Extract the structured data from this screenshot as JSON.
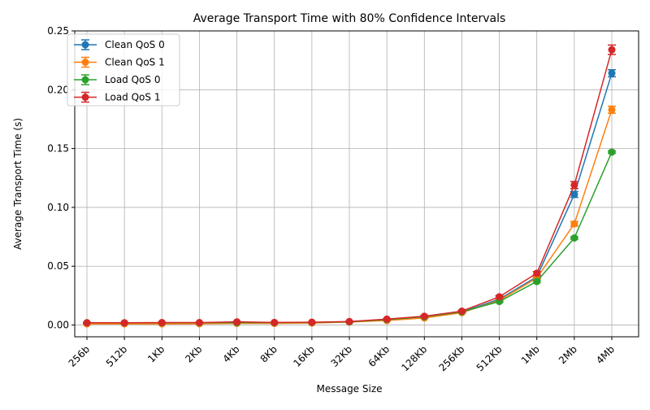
{
  "chart_data": {
    "type": "line",
    "title": "Average Transport Time with 80% Confidence Intervals",
    "xlabel": "Message Size",
    "ylabel": "Average Transport Time (s)",
    "categories": [
      "256b",
      "512b",
      "1Kb",
      "2Kb",
      "4Kb",
      "8Kb",
      "16Kb",
      "32Kb",
      "64Kb",
      "128Kb",
      "256Kb",
      "512Kb",
      "1Mb",
      "2Mb",
      "4Mb"
    ],
    "ylim": [
      -0.01,
      0.25
    ],
    "yticks": [
      0.0,
      0.05,
      0.1,
      0.15,
      0.2,
      0.25
    ],
    "ytick_labels": [
      "0.00",
      "0.05",
      "0.10",
      "0.15",
      "0.20",
      "0.25"
    ],
    "grid": true,
    "legend_position": "top-left",
    "series": [
      {
        "name": "Clean QoS 0",
        "color": "#1f77b4",
        "values": [
          0.0018,
          0.0016,
          0.0017,
          0.0017,
          0.0022,
          0.0019,
          0.0021,
          0.0027,
          0.0045,
          0.007,
          0.011,
          0.022,
          0.041,
          0.111,
          0.214
        ],
        "errors": [
          0.0002,
          0.0002,
          0.0002,
          0.0002,
          0.0003,
          0.0002,
          0.0002,
          0.0003,
          0.0004,
          0.0005,
          0.0006,
          0.0008,
          0.001,
          0.0025,
          0.003
        ]
      },
      {
        "name": "Clean QoS 1",
        "color": "#ff7f0e",
        "values": [
          0.001,
          0.001,
          0.001,
          0.0011,
          0.0014,
          0.0014,
          0.0017,
          0.0025,
          0.0038,
          0.006,
          0.0105,
          0.021,
          0.04,
          0.086,
          0.183
        ],
        "errors": [
          0.0002,
          0.0002,
          0.0002,
          0.0002,
          0.0002,
          0.0002,
          0.0002,
          0.0003,
          0.0004,
          0.0005,
          0.0006,
          0.0008,
          0.001,
          0.002,
          0.003
        ]
      },
      {
        "name": "Load QoS 0",
        "color": "#2ca02c",
        "values": [
          0.0019,
          0.0018,
          0.0019,
          0.0019,
          0.002,
          0.002,
          0.0022,
          0.0027,
          0.0046,
          0.007,
          0.0112,
          0.02,
          0.037,
          0.074,
          0.147
        ],
        "errors": [
          0.0002,
          0.0002,
          0.0002,
          0.0002,
          0.0002,
          0.0002,
          0.0002,
          0.0003,
          0.0004,
          0.0005,
          0.0006,
          0.0008,
          0.001,
          0.001,
          0.001
        ]
      },
      {
        "name": "Load QoS 1",
        "color": "#d62728",
        "values": [
          0.0019,
          0.0019,
          0.0021,
          0.0021,
          0.0027,
          0.0022,
          0.0024,
          0.003,
          0.005,
          0.0075,
          0.0118,
          0.024,
          0.044,
          0.119,
          0.234
        ],
        "errors": [
          0.0002,
          0.0002,
          0.0002,
          0.0002,
          0.0003,
          0.0002,
          0.0002,
          0.0003,
          0.0004,
          0.0005,
          0.0006,
          0.001,
          0.0015,
          0.003,
          0.004
        ]
      }
    ]
  }
}
